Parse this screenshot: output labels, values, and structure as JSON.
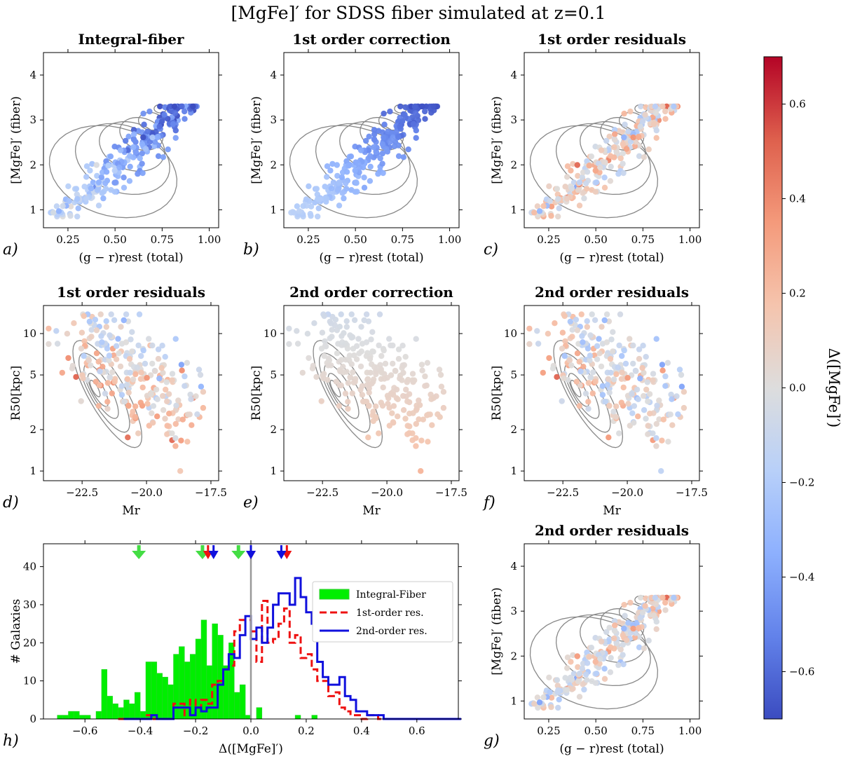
{
  "figure": {
    "title": "[MgFe]′ for SDSS fiber simulated at z=0.1"
  },
  "colors": {
    "hist_integral_fill": "#00ee00",
    "hist_integral_edge": "#33cc33",
    "hist_first_order": "#ee1111",
    "hist_second_order": "#1010dd",
    "zero_line": "#999999",
    "contour": "#888888",
    "arrow_green": "#44dd44",
    "arrow_red": "#ee1111",
    "arrow_blue": "#1010dd"
  },
  "colorbar": {
    "label": "Δ([MgFe]′)",
    "range": [
      -0.7,
      0.7
    ],
    "ticks": [
      "0.6",
      "0.4",
      "0.2",
      "0.0",
      "−0.2",
      "−0.4",
      "−0.6"
    ],
    "tick_values": [
      0.6,
      0.4,
      0.2,
      0.0,
      -0.2,
      -0.4,
      -0.6
    ],
    "colormap": "coolwarm"
  },
  "chart_data": [
    {
      "id": "a",
      "panel_label": "a)",
      "type": "scatter",
      "title": "Integral-fiber",
      "xlabel": "(g − r)rest (total)",
      "ylabel": "[MgFe]′ (fiber)",
      "xlim": [
        0.12,
        1.05
      ],
      "ylim": [
        0.6,
        4.5
      ],
      "xticks": [
        "0.25",
        "0.50",
        "0.75",
        "1.00"
      ],
      "xtick_values": [
        0.25,
        0.5,
        0.75,
        1.0
      ],
      "yticks": [
        "1",
        "2",
        "3",
        "4"
      ],
      "ytick_values": [
        1,
        2,
        3,
        4
      ],
      "contours": "color-index distribution (grey)",
      "color_mode": "integral",
      "points_summary": "about 250 simulated galaxies colored by Δ([MgFe]′)"
    },
    {
      "id": "b",
      "panel_label": "b)",
      "type": "scatter",
      "title": "1st order correction",
      "xlabel": "(g − r)rest (total)",
      "ylabel": "[MgFe]′ (fiber)",
      "xlim": [
        0.12,
        1.05
      ],
      "ylim": [
        0.6,
        4.5
      ],
      "xticks": [
        "0.25",
        "0.50",
        "0.75",
        "1.00"
      ],
      "xtick_values": [
        0.25,
        0.5,
        0.75,
        1.0
      ],
      "yticks": [
        "1",
        "2",
        "3",
        "4"
      ],
      "ytick_values": [
        1,
        2,
        3,
        4
      ],
      "color_mode": "correction1"
    },
    {
      "id": "c",
      "panel_label": "c)",
      "type": "scatter",
      "title": "1st order residuals",
      "xlabel": "(g − r)rest (total)",
      "ylabel": "[MgFe]′ (fiber)",
      "xlim": [
        0.12,
        1.05
      ],
      "ylim": [
        0.6,
        4.5
      ],
      "xticks": [
        "0.25",
        "0.50",
        "0.75",
        "1.00"
      ],
      "xtick_values": [
        0.25,
        0.5,
        0.75,
        1.0
      ],
      "yticks": [
        "1",
        "2",
        "3",
        "4"
      ],
      "ytick_values": [
        1,
        2,
        3,
        4
      ],
      "color_mode": "residual1"
    },
    {
      "id": "d",
      "panel_label": "d)",
      "type": "scatter",
      "title": "1st order residuals",
      "xlabel": "Mr",
      "ylabel": "R50[kpc]",
      "xlim": [
        -24.0,
        -17.2
      ],
      "ylim": [
        0.85,
        16
      ],
      "yscale": "log",
      "xticks": [
        "−22.5",
        "−20.0",
        "−17.5"
      ],
      "xtick_values": [
        -22.5,
        -20.0,
        -17.5
      ],
      "yticks": [
        "1",
        "2",
        "5",
        "10"
      ],
      "ytick_values": [
        1,
        2,
        5,
        10
      ],
      "color_mode": "residual1"
    },
    {
      "id": "e",
      "panel_label": "e)",
      "type": "scatter",
      "title": "2nd order correction",
      "xlabel": "Mr",
      "ylabel": "R50[kpc]",
      "xlim": [
        -24.0,
        -17.2
      ],
      "ylim": [
        0.85,
        16
      ],
      "yscale": "log",
      "xticks": [
        "−22.5",
        "−20.0",
        "−17.5"
      ],
      "xtick_values": [
        -22.5,
        -20.0,
        -17.5
      ],
      "yticks": [
        "1",
        "2",
        "5",
        "10"
      ],
      "ytick_values": [
        1,
        2,
        5,
        10
      ],
      "color_mode": "correction2"
    },
    {
      "id": "f",
      "panel_label": "f)",
      "type": "scatter",
      "title": "2nd order residuals",
      "xlabel": "Mr",
      "ylabel": "R50[kpc]",
      "xlim": [
        -24.0,
        -17.2
      ],
      "ylim": [
        0.85,
        16
      ],
      "yscale": "log",
      "xticks": [
        "−22.5",
        "−20.0",
        "−17.5"
      ],
      "xtick_values": [
        -22.5,
        -20.0,
        -17.5
      ],
      "yticks": [
        "1",
        "2",
        "5",
        "10"
      ],
      "ytick_values": [
        1,
        2,
        5,
        10
      ],
      "color_mode": "residual2"
    },
    {
      "id": "g",
      "panel_label": "g)",
      "type": "scatter",
      "title": "2nd order residuals",
      "xlabel": "(g − r)rest (total)",
      "ylabel": "[MgFe]′ (fiber)",
      "xlim": [
        0.12,
        1.05
      ],
      "ylim": [
        0.6,
        4.5
      ],
      "xticks": [
        "0.25",
        "0.50",
        "0.75",
        "1.00"
      ],
      "xtick_values": [
        0.25,
        0.5,
        0.75,
        1.0
      ],
      "yticks": [
        "1",
        "2",
        "3",
        "4"
      ],
      "ytick_values": [
        1,
        2,
        3,
        4
      ],
      "color_mode": "residual2"
    },
    {
      "id": "h",
      "panel_label": "h)",
      "type": "histogram",
      "xlabel": "Δ([MgFe]′)",
      "ylabel": "# Galaxies",
      "xlim": [
        -0.75,
        0.75
      ],
      "ylim": [
        0,
        46
      ],
      "xticks": [
        "−0.6",
        "−0.4",
        "−0.2",
        "0.0",
        "0.2",
        "0.4",
        "0.6"
      ],
      "xtick_values": [
        -0.6,
        -0.4,
        -0.2,
        0.0,
        0.2,
        0.4,
        0.6
      ],
      "yticks": [
        "0",
        "10",
        "20",
        "30",
        "40"
      ],
      "ytick_values": [
        0,
        10,
        20,
        30,
        40
      ],
      "zero_line": 0.0,
      "legend_position": "upper-right",
      "series": [
        {
          "name": "Integral-Fiber",
          "style": "filled",
          "bin_start": -0.7,
          "bin_width": 0.02,
          "counts": [
            1,
            1,
            2,
            2,
            1,
            1,
            0,
            2,
            13,
            6,
            4,
            3,
            5,
            4,
            7,
            2,
            15,
            15,
            12,
            11,
            9,
            17,
            19,
            15,
            17,
            21,
            26,
            14,
            25,
            22,
            14,
            20,
            7,
            9,
            1,
            0,
            3,
            0,
            0,
            0,
            0,
            0,
            0,
            1,
            0,
            0,
            1,
            0
          ]
        },
        {
          "name": "1st-order res.",
          "style": "dashed",
          "bin_start": -0.48,
          "bin_width": 0.02,
          "counts": [
            0,
            0,
            0,
            0,
            0,
            1,
            0,
            0,
            0,
            0,
            4,
            4,
            1,
            5,
            3,
            5,
            4,
            9,
            10,
            13,
            14,
            23,
            26,
            26,
            23,
            15,
            31,
            20,
            21,
            25,
            29,
            20,
            22,
            16,
            17,
            13,
            10,
            10,
            6,
            7,
            3,
            2,
            1,
            1,
            0,
            1,
            1,
            0,
            0,
            0,
            0,
            0,
            0,
            0
          ]
        },
        {
          "name": "2nd-order res.",
          "style": "solid",
          "bin_start": -0.46,
          "bin_width": 0.02,
          "counts": [
            0,
            0,
            0,
            0,
            0,
            1,
            0,
            0,
            0,
            3,
            3,
            3,
            1,
            3,
            2,
            3,
            3,
            9,
            13,
            17,
            16,
            22,
            27,
            21,
            24,
            20,
            24,
            30,
            33,
            33,
            30,
            37,
            32,
            28,
            25,
            15,
            11,
            9,
            9,
            11,
            6,
            5,
            2,
            2,
            1,
            1,
            1,
            0,
            0,
            0,
            0,
            0,
            0,
            0,
            0,
            0,
            0,
            0,
            0,
            0,
            0
          ]
        }
      ],
      "arrows": [
        {
          "series": "Integral-Fiber",
          "values": [
            -0.405,
            -0.175,
            -0.045
          ]
        },
        {
          "series": "1st-order res.",
          "values": [
            -0.155,
            0.0,
            0.13
          ]
        },
        {
          "series": "2nd-order res.",
          "values": [
            -0.135,
            0.0,
            0.11
          ]
        }
      ]
    }
  ]
}
